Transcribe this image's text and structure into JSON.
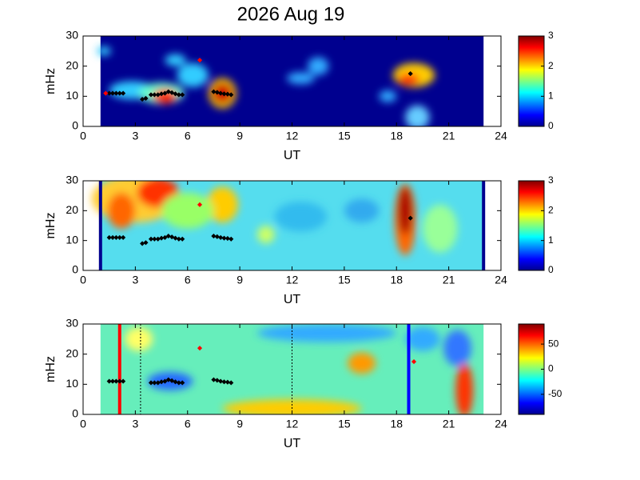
{
  "chart_data": [
    {
      "type": "heatmap",
      "title": "2026 Aug 19",
      "xlabel": "UT",
      "ylabel": "mHz",
      "xlim": [
        0,
        24
      ],
      "xticks": [
        0,
        3,
        6,
        9,
        12,
        15,
        18,
        21,
        24
      ],
      "ylim": [
        0,
        30
      ],
      "yticks": [
        0,
        10,
        20,
        30
      ],
      "clim": [
        0,
        3
      ],
      "cticks": [
        0,
        1,
        2,
        3
      ],
      "series": [
        {
          "color": "#000000",
          "x": [
            1.5,
            1.7,
            1.9,
            2.1,
            2.3,
            3.4,
            3.6,
            3.9,
            4.1,
            4.3,
            4.5,
            4.7,
            4.9,
            5.1,
            5.3,
            5.5,
            5.7,
            7.5,
            7.7,
            7.9,
            8.1,
            8.3,
            8.5,
            18.8
          ],
          "values": [
            11,
            11,
            11,
            11,
            11,
            9,
            9.3,
            10.5,
            10.5,
            10.5,
            10.8,
            11,
            11.5,
            11.2,
            10.8,
            10.5,
            10.5,
            11.5,
            11.3,
            11,
            10.8,
            10.7,
            10.5,
            17.5
          ]
        },
        {
          "color": "#ff0000",
          "x": [
            1.3,
            6.7
          ],
          "values": [
            11,
            22
          ]
        }
      ]
    },
    {
      "type": "heatmap",
      "xlabel": "UT",
      "ylabel": "mHz",
      "xlim": [
        0,
        24
      ],
      "xticks": [
        0,
        3,
        6,
        9,
        12,
        15,
        18,
        21,
        24
      ],
      "ylim": [
        0,
        30
      ],
      "yticks": [
        0,
        10,
        20,
        30
      ],
      "clim": [
        0,
        3
      ],
      "cticks": [
        0,
        1,
        2,
        3
      ],
      "series": [
        {
          "color": "#000000",
          "x": [
            1.5,
            1.7,
            1.9,
            2.1,
            2.3,
            3.4,
            3.6,
            3.9,
            4.1,
            4.3,
            4.5,
            4.7,
            4.9,
            5.1,
            5.3,
            5.5,
            5.7,
            7.5,
            7.7,
            7.9,
            8.1,
            8.3,
            8.5,
            18.8
          ],
          "values": [
            11,
            11,
            11,
            11,
            11,
            9,
            9.3,
            10.5,
            10.5,
            10.5,
            10.8,
            11,
            11.5,
            11.2,
            10.8,
            10.5,
            10.5,
            11.5,
            11.3,
            11,
            10.8,
            10.7,
            10.5,
            17.5
          ]
        },
        {
          "color": "#ff0000",
          "x": [
            6.7
          ],
          "values": [
            22
          ]
        }
      ]
    },
    {
      "type": "heatmap",
      "xlabel": "UT",
      "ylabel": "mHz",
      "xlim": [
        0,
        24
      ],
      "xticks": [
        0,
        3,
        6,
        9,
        12,
        15,
        18,
        21,
        24
      ],
      "ylim": [
        0,
        30
      ],
      "yticks": [
        0,
        10,
        20,
        30
      ],
      "clim": [
        -90,
        90
      ],
      "cticks": [
        -50,
        0,
        50
      ],
      "vlines": [
        {
          "x": 2.1,
          "color": "#ff0000",
          "style": "solid"
        },
        {
          "x": 3.3,
          "color": "#000000",
          "style": "dotted"
        },
        {
          "x": 12,
          "color": "#000000",
          "style": "dotted"
        },
        {
          "x": 18.7,
          "color": "#0000ff",
          "style": "solid"
        }
      ],
      "series": [
        {
          "color": "#000000",
          "x": [
            1.5,
            1.7,
            1.9,
            2.1,
            2.3,
            3.9,
            4.1,
            4.3,
            4.5,
            4.7,
            4.9,
            5.1,
            5.3,
            5.5,
            5.7,
            7.5,
            7.7,
            7.9,
            8.1,
            8.3,
            8.5
          ],
          "values": [
            11,
            11,
            11,
            11,
            11,
            10.5,
            10.5,
            10.5,
            10.8,
            11,
            11.5,
            11.2,
            10.8,
            10.5,
            10.5,
            11.5,
            11.3,
            11,
            10.8,
            10.7,
            10.5
          ]
        },
        {
          "color": "#ff0000",
          "x": [
            6.7,
            19
          ],
          "values": [
            22,
            17.5
          ]
        }
      ]
    }
  ]
}
